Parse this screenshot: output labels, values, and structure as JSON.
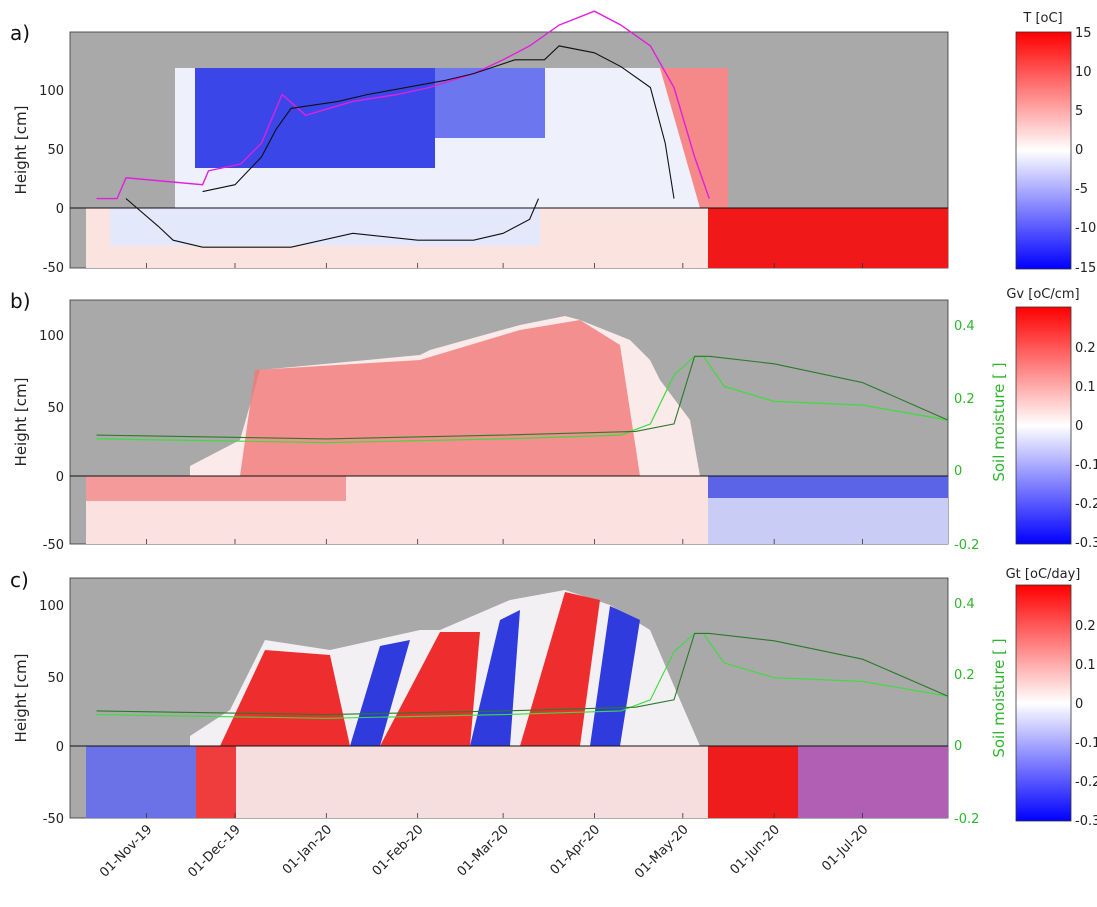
{
  "chart_data": [
    {
      "panel": "a)",
      "type": "heatmap",
      "ylabel": "Height [cm]",
      "ylim": [
        -50,
        120
      ],
      "yticks": [
        "100",
        "50",
        "0",
        "-50"
      ],
      "x_ticks": [
        "01-Nov-19",
        "01-Dec-19",
        "01-Jan-20",
        "01-Feb-20",
        "01-Mar-20",
        "01-Apr-20",
        "01-May-20",
        "01-Jun-20",
        "01-Jul-20"
      ],
      "colorbar": {
        "title": "T [oC]",
        "range": [
          -15,
          15
        ],
        "ticks": [
          "15",
          "10",
          "5",
          "0",
          "-5",
          "-10",
          "-15"
        ]
      },
      "series": [
        {
          "label": "snow depth (magenta)",
          "color": "#e020e0",
          "x": [
            "2019-10-15",
            "2019-10-22",
            "2019-10-25",
            "2019-11-20",
            "2019-11-22",
            "2019-12-03",
            "2019-12-10",
            "2019-12-17",
            "2019-12-25",
            "2020-01-10",
            "2020-01-25",
            "2020-02-05",
            "2020-02-20",
            "2020-03-01",
            "2020-03-10",
            "2020-03-20",
            "2020-04-01",
            "2020-04-10",
            "2020-04-20",
            "2020-04-28",
            "2020-05-05",
            "2020-05-10"
          ],
          "y": [
            0,
            0,
            15,
            10,
            20,
            25,
            40,
            75,
            60,
            70,
            75,
            80,
            90,
            100,
            110,
            125,
            135,
            125,
            110,
            80,
            30,
            0
          ]
        },
        {
          "label": "snow surface (black)",
          "color": "#111111",
          "x": [
            "2019-11-20",
            "2019-12-01",
            "2019-12-10",
            "2019-12-15",
            "2019-12-20",
            "2020-01-05",
            "2020-01-15",
            "2020-02-10",
            "2020-02-20",
            "2020-03-05",
            "2020-03-15",
            "2020-03-20",
            "2020-04-01",
            "2020-04-10",
            "2020-04-20",
            "2020-04-25",
            "2020-04-28"
          ],
          "y": [
            5,
            10,
            30,
            50,
            65,
            70,
            75,
            85,
            90,
            100,
            100,
            110,
            105,
            95,
            80,
            40,
            0
          ]
        },
        {
          "label": "frost depth (black)",
          "color": "#111111",
          "x": [
            "2019-10-25",
            "2019-11-05",
            "2019-11-10",
            "2019-11-20",
            "2019-12-01",
            "2019-12-20",
            "2020-01-10",
            "2020-02-01",
            "2020-02-20",
            "2020-03-01",
            "2020-03-10",
            "2020-03-13"
          ],
          "y": [
            0,
            -20,
            -30,
            -35,
            -35,
            -35,
            -25,
            -30,
            -30,
            -25,
            -15,
            0
          ]
        }
      ]
    },
    {
      "panel": "b)",
      "type": "heatmap",
      "ylabel": "Height [cm]",
      "y2label": "Soil moisture [ ]",
      "ylim": [
        -50,
        120
      ],
      "yticks": [
        "100",
        "50",
        "0",
        "-50"
      ],
      "y2lim": [
        -0.2,
        0.45
      ],
      "y2ticks": [
        "0.4",
        "0.2",
        "0",
        "-0.2"
      ],
      "colorbar": {
        "title": "Gv [oC/cm]",
        "range": [
          -0.3,
          0.3
        ],
        "ticks": [
          "0.2",
          "0.1",
          "0",
          "-0.1",
          "-0.2",
          "-0.3"
        ]
      },
      "series": [
        {
          "label": "soil moisture (light green)",
          "color": "#3ddc3d",
          "x": [
            "2019-10-15",
            "2020-01-01",
            "2020-03-01",
            "2020-04-10",
            "2020-04-20",
            "2020-04-28",
            "2020-05-05",
            "2020-05-08",
            "2020-05-15",
            "2020-06-01",
            "2020-07-01",
            "2020-07-30"
          ],
          "y": [
            0.08,
            0.07,
            0.08,
            0.09,
            0.12,
            0.25,
            0.3,
            0.3,
            0.22,
            0.18,
            0.17,
            0.13
          ]
        },
        {
          "label": "soil moisture (dark green)",
          "color": "#2a7a2a",
          "x": [
            "2019-10-15",
            "2020-01-01",
            "2020-03-01",
            "2020-04-15",
            "2020-04-28",
            "2020-05-05",
            "2020-05-10",
            "2020-06-01",
            "2020-07-01",
            "2020-07-30"
          ],
          "y": [
            0.09,
            0.08,
            0.09,
            0.1,
            0.12,
            0.3,
            0.3,
            0.28,
            0.23,
            0.13
          ]
        }
      ]
    },
    {
      "panel": "c)",
      "type": "heatmap",
      "ylabel": "Height [cm]",
      "y2label": "Soil moisture [ ]",
      "ylim": [
        -50,
        120
      ],
      "yticks": [
        "100",
        "50",
        "0",
        "-50"
      ],
      "y2lim": [
        -0.2,
        0.45
      ],
      "y2ticks": [
        "0.4",
        "0.2",
        "0",
        "-0.2"
      ],
      "colorbar": {
        "title": "Gt [oC/day]",
        "range": [
          -0.3,
          0.3
        ],
        "ticks": [
          "0.2",
          "0.1",
          "0",
          "-0.1",
          "-0.2",
          "-0.3"
        ]
      }
    }
  ]
}
